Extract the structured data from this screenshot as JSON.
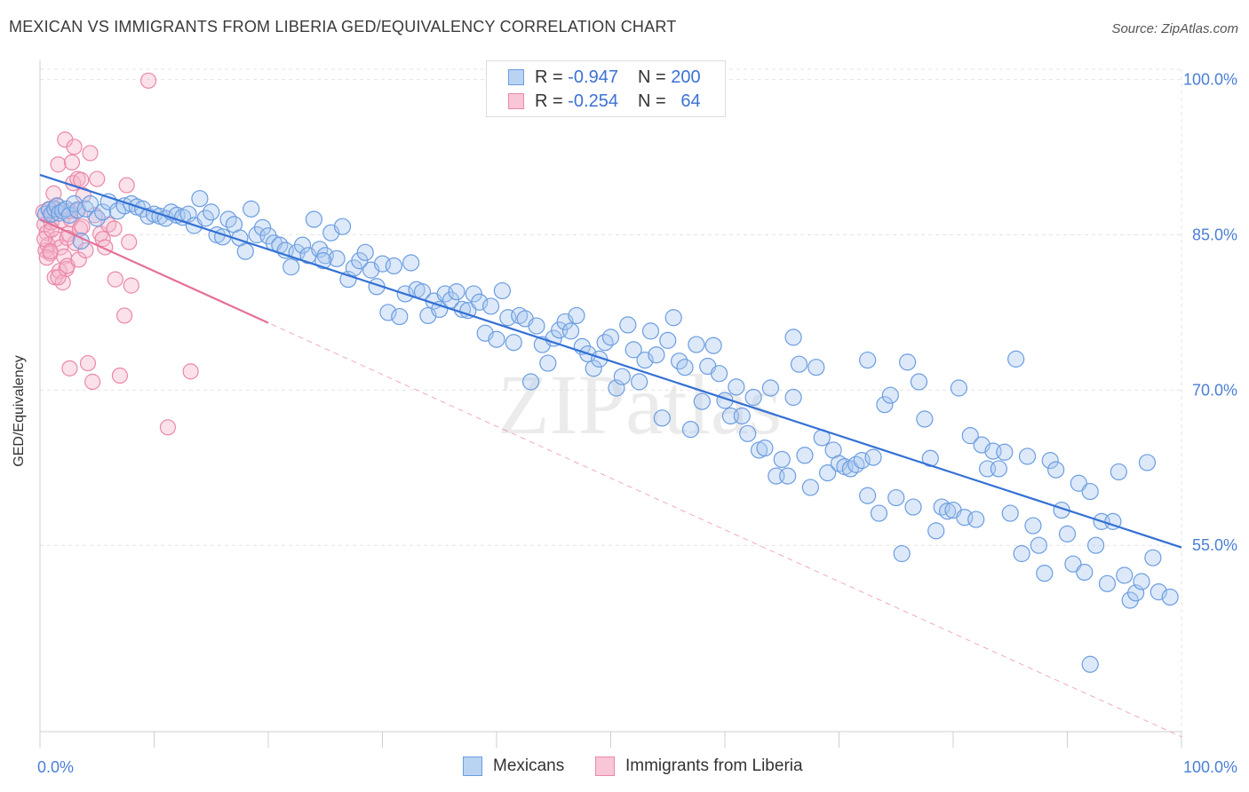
{
  "title": "MEXICAN VS IMMIGRANTS FROM LIBERIA GED/EQUIVALENCY CORRELATION CHART",
  "source": "Source: ZipAtlas.com",
  "watermark": "ZIPatlas",
  "legend": {
    "rows": [
      {
        "r_label": "R =",
        "r_value": "-0.947",
        "n_label": "N =",
        "n_value": "200"
      },
      {
        "r_label": "R =",
        "r_value": "-0.254",
        "n_label": "N =",
        "n_value": "64"
      }
    ]
  },
  "bottom_legend": [
    "Mexicans",
    "Immigrants from Liberia"
  ],
  "colors": {
    "blue_fill": "#a9c8f0",
    "blue_stroke": "#6b9de0",
    "blue_line": "#3370d4",
    "pink_fill": "#f6b3c8",
    "pink_stroke": "#ea88a8",
    "pink_line": "#e5709a",
    "axis_text": "#4a7fd6",
    "grid": "#e4e4e4"
  },
  "chart_data": {
    "type": "scatter",
    "title": "MEXICAN VS IMMIGRANTS FROM LIBERIA GED/EQUIVALENCY CORRELATION CHART",
    "xlabel": "",
    "ylabel": "GED/Equivalency",
    "xlim": [
      0,
      100
    ],
    "ylim": [
      37.0,
      101.0
    ],
    "x_tick_labels": [
      "0.0%",
      "100.0%"
    ],
    "y_ticks": [
      100,
      85,
      70,
      55
    ],
    "y_tick_labels": [
      "100.0%",
      "85.0%",
      "70.0%",
      "55.0%"
    ],
    "grid": true,
    "legend_placement": "top-center",
    "series": [
      {
        "name": "Mexicans",
        "trend": {
          "x0": 0,
          "y0": 90.8,
          "x1": 100,
          "y1": 54.8
        },
        "points": [
          [
            0.5,
            87.0
          ],
          [
            0.8,
            87.4
          ],
          [
            1.0,
            87.0
          ],
          [
            1.3,
            87.5
          ],
          [
            1.5,
            87.8
          ],
          [
            1.7,
            87.1
          ],
          [
            2.0,
            87.3
          ],
          [
            2.3,
            87.5
          ],
          [
            2.6,
            86.9
          ],
          [
            3.0,
            88.0
          ],
          [
            3.3,
            87.4
          ],
          [
            3.6,
            84.4
          ],
          [
            4.0,
            87.5
          ],
          [
            4.4,
            88.0
          ],
          [
            5.0,
            86.6
          ],
          [
            5.5,
            87.2
          ],
          [
            6.0,
            88.2
          ],
          [
            6.8,
            87.3
          ],
          [
            7.4,
            87.8
          ],
          [
            8.0,
            88.0
          ],
          [
            8.5,
            87.7
          ],
          [
            9.0,
            87.5
          ],
          [
            9.5,
            86.8
          ],
          [
            10.0,
            87.0
          ],
          [
            10.5,
            86.8
          ],
          [
            11.0,
            86.6
          ],
          [
            11.5,
            87.2
          ],
          [
            12.0,
            86.9
          ],
          [
            12.5,
            86.7
          ],
          [
            13.0,
            87.0
          ],
          [
            13.5,
            85.9
          ],
          [
            14.0,
            88.5
          ],
          [
            14.5,
            86.6
          ],
          [
            15.0,
            87.2
          ],
          [
            15.5,
            85.0
          ],
          [
            16.0,
            84.8
          ],
          [
            16.5,
            86.5
          ],
          [
            17.0,
            86.0
          ],
          [
            17.5,
            84.7
          ],
          [
            18.0,
            83.4
          ],
          [
            18.5,
            87.5
          ],
          [
            19.0,
            85.0
          ],
          [
            19.5,
            85.7
          ],
          [
            20.0,
            84.9
          ],
          [
            20.5,
            84.2
          ],
          [
            21.0,
            84.0
          ],
          [
            21.5,
            83.5
          ],
          [
            22.0,
            81.9
          ],
          [
            22.5,
            83.3
          ],
          [
            23.0,
            84.0
          ],
          [
            23.5,
            83.0
          ],
          [
            24.0,
            86.5
          ],
          [
            24.5,
            83.6
          ],
          [
            25.0,
            83.0
          ],
          [
            25.5,
            85.2
          ],
          [
            26.0,
            82.7
          ],
          [
            26.5,
            85.8
          ],
          [
            27.0,
            80.7
          ],
          [
            27.5,
            81.8
          ],
          [
            28.0,
            82.5
          ],
          [
            28.5,
            83.3
          ],
          [
            29.0,
            81.6
          ],
          [
            29.5,
            80.0
          ],
          [
            30.0,
            82.2
          ],
          [
            30.5,
            77.5
          ],
          [
            31.0,
            82.0
          ],
          [
            31.5,
            77.1
          ],
          [
            32.0,
            79.3
          ],
          [
            32.5,
            82.3
          ],
          [
            33.0,
            79.7
          ],
          [
            33.5,
            79.5
          ],
          [
            34.0,
            77.2
          ],
          [
            34.5,
            78.6
          ],
          [
            35.0,
            77.8
          ],
          [
            35.5,
            79.3
          ],
          [
            36.0,
            78.7
          ],
          [
            36.5,
            79.5
          ],
          [
            37.0,
            77.8
          ],
          [
            37.5,
            77.7
          ],
          [
            38.0,
            79.3
          ],
          [
            38.5,
            78.5
          ],
          [
            39.0,
            75.5
          ],
          [
            39.5,
            78.1
          ],
          [
            40.0,
            74.9
          ],
          [
            40.5,
            79.6
          ],
          [
            41.0,
            77.0
          ],
          [
            41.5,
            74.6
          ],
          [
            42.0,
            77.2
          ],
          [
            42.5,
            76.9
          ],
          [
            43.0,
            70.8
          ],
          [
            43.5,
            76.2
          ],
          [
            44.0,
            74.4
          ],
          [
            44.5,
            72.6
          ],
          [
            45.0,
            75.0
          ],
          [
            45.5,
            75.8
          ],
          [
            46.0,
            76.6
          ],
          [
            46.5,
            75.7
          ],
          [
            47.0,
            77.2
          ],
          [
            47.5,
            74.2
          ],
          [
            48.0,
            73.5
          ],
          [
            48.5,
            72.1
          ],
          [
            49.0,
            73.0
          ],
          [
            49.5,
            74.6
          ],
          [
            50.0,
            75.1
          ],
          [
            50.5,
            70.2
          ],
          [
            51.0,
            71.3
          ],
          [
            51.5,
            76.3
          ],
          [
            52.0,
            73.9
          ],
          [
            52.5,
            70.8
          ],
          [
            53.0,
            72.9
          ],
          [
            53.5,
            75.7
          ],
          [
            54.0,
            73.4
          ],
          [
            54.5,
            67.3
          ],
          [
            55.0,
            74.8
          ],
          [
            55.5,
            77.0
          ],
          [
            56.0,
            72.8
          ],
          [
            56.5,
            72.2
          ],
          [
            57.0,
            66.2
          ],
          [
            57.5,
            74.4
          ],
          [
            58.0,
            68.9
          ],
          [
            58.5,
            72.3
          ],
          [
            59.0,
            74.3
          ],
          [
            59.5,
            71.6
          ],
          [
            60.0,
            69.0
          ],
          [
            60.5,
            67.5
          ],
          [
            61.0,
            70.3
          ],
          [
            61.5,
            67.5
          ],
          [
            62.0,
            65.8
          ],
          [
            62.5,
            69.3
          ],
          [
            63.0,
            64.2
          ],
          [
            63.5,
            64.4
          ],
          [
            64.0,
            70.2
          ],
          [
            64.5,
            61.7
          ],
          [
            65.0,
            63.3
          ],
          [
            65.5,
            61.7
          ],
          [
            66.0,
            69.3
          ],
          [
            66.5,
            72.5
          ],
          [
            67.0,
            63.7
          ],
          [
            67.5,
            60.6
          ],
          [
            68.0,
            72.2
          ],
          [
            68.5,
            65.4
          ],
          [
            69.0,
            62.0
          ],
          [
            69.5,
            64.2
          ],
          [
            70.0,
            62.9
          ],
          [
            70.5,
            62.6
          ],
          [
            71.0,
            62.4
          ],
          [
            71.5,
            62.8
          ],
          [
            72.0,
            63.2
          ],
          [
            72.5,
            59.8
          ],
          [
            73.0,
            63.5
          ],
          [
            73.5,
            58.1
          ],
          [
            74.0,
            68.6
          ],
          [
            74.5,
            69.5
          ],
          [
            75.0,
            59.6
          ],
          [
            75.5,
            54.2
          ],
          [
            76.0,
            72.7
          ],
          [
            76.5,
            58.7
          ],
          [
            77.0,
            70.8
          ],
          [
            77.5,
            67.2
          ],
          [
            78.0,
            63.4
          ],
          [
            78.5,
            56.4
          ],
          [
            79.0,
            58.7
          ],
          [
            79.5,
            58.3
          ],
          [
            80.0,
            58.4
          ],
          [
            80.5,
            70.2
          ],
          [
            81.0,
            57.7
          ],
          [
            81.5,
            65.6
          ],
          [
            82.0,
            57.5
          ],
          [
            82.5,
            64.7
          ],
          [
            83.0,
            62.4
          ],
          [
            83.5,
            64.1
          ],
          [
            84.0,
            62.4
          ],
          [
            84.5,
            64.0
          ],
          [
            85.0,
            58.1
          ],
          [
            85.5,
            73.0
          ],
          [
            86.0,
            54.2
          ],
          [
            86.5,
            63.6
          ],
          [
            87.0,
            56.9
          ],
          [
            87.5,
            55.0
          ],
          [
            88.0,
            52.3
          ],
          [
            88.5,
            63.2
          ],
          [
            89.0,
            62.3
          ],
          [
            89.5,
            58.4
          ],
          [
            90.0,
            56.1
          ],
          [
            90.5,
            53.2
          ],
          [
            91.0,
            61.0
          ],
          [
            91.5,
            52.4
          ],
          [
            92.0,
            60.2
          ],
          [
            92.5,
            55.0
          ],
          [
            93.0,
            57.3
          ],
          [
            93.5,
            51.3
          ],
          [
            94.0,
            57.3
          ],
          [
            94.5,
            62.1
          ],
          [
            95.0,
            52.1
          ],
          [
            95.5,
            49.7
          ],
          [
            96.0,
            50.4
          ],
          [
            96.5,
            51.5
          ],
          [
            97.0,
            63.0
          ],
          [
            97.5,
            53.8
          ],
          [
            98.0,
            50.5
          ],
          [
            99.0,
            50.0
          ],
          [
            92.0,
            43.5
          ],
          [
            72.5,
            72.9
          ],
          [
            66.0,
            75.1
          ],
          [
            24.8,
            82.5
          ]
        ]
      },
      {
        "name": "Immigrants from Liberia",
        "trend": {
          "x0": 0,
          "y0": 86.5,
          "x1": 20,
          "y1": 76.5
        },
        "dashed_trend": {
          "x0": 0,
          "y0": 86.5,
          "x1": 100,
          "y1": 36.5
        },
        "points": [
          [
            0.3,
            87.2
          ],
          [
            0.4,
            86.0
          ],
          [
            0.5,
            83.5
          ],
          [
            0.6,
            85.2
          ],
          [
            0.7,
            84.0
          ],
          [
            0.8,
            87.5
          ],
          [
            0.9,
            83.2
          ],
          [
            1.0,
            86.2
          ],
          [
            1.1,
            87.0
          ],
          [
            1.2,
            89.0
          ],
          [
            1.3,
            80.9
          ],
          [
            1.4,
            84.6
          ],
          [
            1.5,
            87.8
          ],
          [
            1.6,
            91.8
          ],
          [
            1.7,
            81.5
          ],
          [
            1.8,
            83.8
          ],
          [
            1.9,
            86.4
          ],
          [
            2.0,
            80.4
          ],
          [
            2.1,
            82.9
          ],
          [
            2.2,
            94.2
          ],
          [
            2.3,
            81.7
          ],
          [
            2.4,
            82.0
          ],
          [
            2.5,
            85.1
          ],
          [
            2.6,
            72.1
          ],
          [
            2.7,
            86.5
          ],
          [
            2.8,
            92.0
          ],
          [
            2.9,
            90.0
          ],
          [
            3.0,
            93.5
          ],
          [
            3.1,
            84.2
          ],
          [
            3.2,
            87.3
          ],
          [
            3.3,
            90.4
          ],
          [
            3.4,
            82.6
          ],
          [
            3.5,
            85.6
          ],
          [
            3.6,
            90.3
          ],
          [
            3.8,
            88.8
          ],
          [
            4.0,
            83.5
          ],
          [
            4.2,
            72.6
          ],
          [
            4.4,
            92.9
          ],
          [
            4.6,
            70.8
          ],
          [
            4.8,
            86.9
          ],
          [
            5.0,
            90.4
          ],
          [
            5.3,
            85.1
          ],
          [
            5.5,
            84.6
          ],
          [
            5.7,
            83.8
          ],
          [
            6.0,
            86.0
          ],
          [
            6.5,
            85.6
          ],
          [
            6.6,
            80.7
          ],
          [
            7.0,
            71.4
          ],
          [
            7.4,
            77.2
          ],
          [
            7.6,
            89.8
          ],
          [
            7.8,
            84.3
          ],
          [
            8.0,
            80.1
          ],
          [
            9.5,
            99.9
          ],
          [
            11.2,
            66.4
          ],
          [
            13.2,
            71.8
          ],
          [
            0.4,
            84.6
          ],
          [
            0.6,
            82.8
          ],
          [
            1.0,
            85.5
          ],
          [
            2.4,
            84.7
          ],
          [
            0.9,
            83.4
          ],
          [
            1.6,
            80.9
          ],
          [
            3.7,
            85.8
          ],
          [
            2.6,
            87.3
          ],
          [
            1.3,
            87.5
          ]
        ]
      }
    ]
  }
}
